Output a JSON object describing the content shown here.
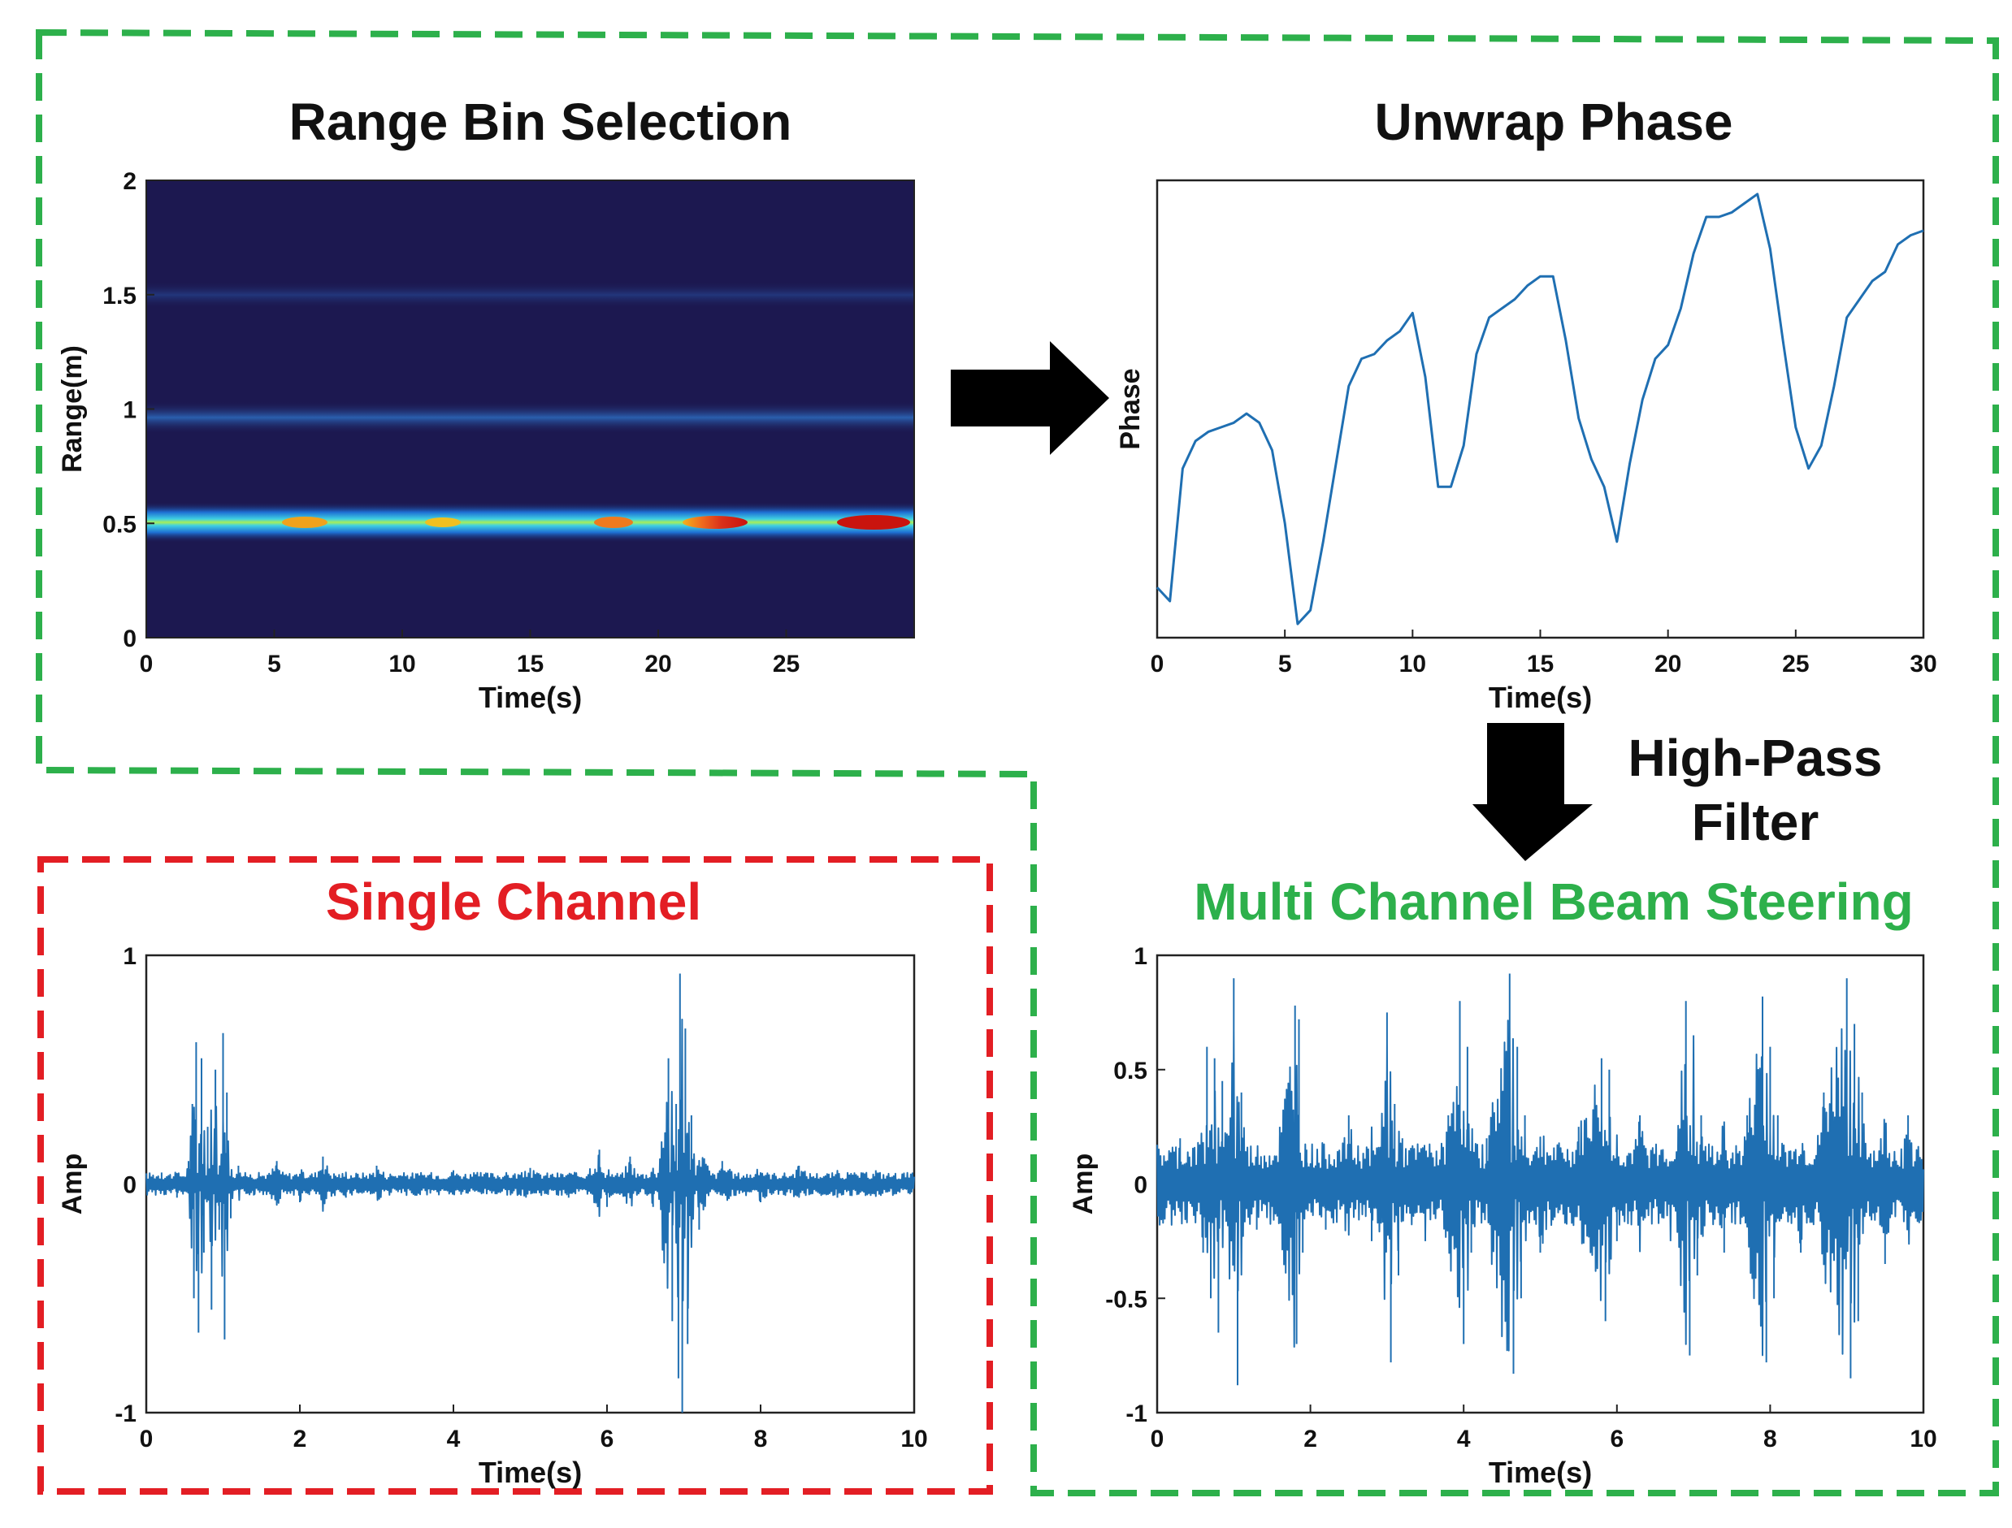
{
  "colors": {
    "group_green": "#2db04b",
    "group_red": "#e31e24",
    "signal_blue": "#1f6fb2",
    "arrow": "#000000",
    "heatmap_low": "#1c1850",
    "heatmap_high": "#d41c0e"
  },
  "labels": {
    "range_bin_title": "Range Bin Selection",
    "unwrap_title": "Unwrap Phase",
    "single_title": "Single Channel",
    "multi_title": "Multi Channel Beam Steering",
    "filter_line1": "High-Pass",
    "filter_line2": "Filter"
  },
  "chart_data": [
    {
      "id": "range_bin",
      "type": "heatmap",
      "title": "Range Bin Selection",
      "xlabel": "Time(s)",
      "ylabel": "Range(m)",
      "xlim": [
        0,
        30
      ],
      "ylim": [
        0,
        2
      ],
      "xticks": [
        0,
        5,
        10,
        15,
        20,
        25
      ],
      "yticks": [
        0,
        0.5,
        1,
        1.5,
        2
      ],
      "ytick_labels": [
        "0",
        "0.5",
        "1",
        "1.5",
        "2"
      ],
      "bands": [
        {
          "range_m": 0.5,
          "intensity": 1.0
        },
        {
          "range_m": 0.97,
          "intensity": 0.35
        },
        {
          "range_m": 1.45,
          "intensity": 0.15
        }
      ]
    },
    {
      "id": "unwrap",
      "type": "line",
      "title": "Unwrap Phase",
      "xlabel": "Time(s)",
      "ylabel": "Phase",
      "xlim": [
        0,
        30
      ],
      "xticks": [
        0,
        5,
        10,
        15,
        20,
        25,
        30
      ],
      "ylim": [
        0,
        1
      ],
      "x": [
        0,
        0.5,
        1,
        1.5,
        2,
        2.5,
        3,
        3.5,
        4,
        4.5,
        5,
        5.5,
        6,
        6.5,
        7,
        7.5,
        8,
        8.5,
        9,
        9.5,
        10,
        10.5,
        11,
        11.5,
        12,
        12.5,
        13,
        13.5,
        14,
        14.5,
        15,
        15.5,
        16,
        16.5,
        17,
        17.5,
        18,
        18.5,
        19,
        19.5,
        20,
        20.5,
        21,
        21.5,
        22,
        22.5,
        23,
        23.5,
        24,
        24.5,
        25,
        25.5,
        26,
        26.5,
        27,
        27.5,
        28,
        28.5,
        29,
        29.5,
        30
      ],
      "y": [
        0.11,
        0.08,
        0.37,
        0.43,
        0.45,
        0.46,
        0.47,
        0.49,
        0.47,
        0.41,
        0.25,
        0.03,
        0.06,
        0.21,
        0.38,
        0.55,
        0.61,
        0.62,
        0.65,
        0.67,
        0.71,
        0.57,
        0.33,
        0.33,
        0.42,
        0.62,
        0.7,
        0.72,
        0.74,
        0.77,
        0.79,
        0.79,
        0.65,
        0.48,
        0.39,
        0.33,
        0.21,
        0.38,
        0.52,
        0.61,
        0.64,
        0.72,
        0.84,
        0.92,
        0.92,
        0.93,
        0.95,
        0.97,
        0.85,
        0.65,
        0.46,
        0.37,
        0.42,
        0.55,
        0.7,
        0.74,
        0.78,
        0.8,
        0.86,
        0.88,
        0.89
      ]
    },
    {
      "id": "single",
      "type": "line",
      "title": "Single Channel",
      "xlabel": "Time(s)",
      "ylabel": "Amp",
      "xlim": [
        0,
        10
      ],
      "ylim": [
        -1,
        1
      ],
      "xticks": [
        0,
        2,
        4,
        6,
        8,
        10
      ],
      "yticks": [
        -1,
        0,
        1
      ],
      "ytick_labels": [
        "-1",
        "0",
        "1"
      ],
      "x": [
        0,
        0.2,
        0.4,
        0.55,
        0.6,
        0.62,
        0.65,
        0.68,
        0.72,
        0.75,
        0.8,
        0.85,
        0.9,
        0.95,
        1.0,
        1.02,
        1.05,
        1.1,
        1.2,
        1.4,
        1.7,
        2.0,
        2.3,
        2.6,
        3.0,
        3.5,
        4.0,
        4.5,
        5.0,
        5.5,
        5.9,
        6.0,
        6.3,
        6.6,
        6.8,
        6.85,
        6.9,
        6.93,
        6.95,
        6.98,
        7.02,
        7.05,
        7.1,
        7.2,
        7.5,
        8.0,
        8.5,
        9.0,
        9.5,
        10.0
      ],
      "y": [
        0.0,
        0.05,
        -0.06,
        0.1,
        0.35,
        -0.5,
        0.62,
        -0.65,
        0.55,
        -0.3,
        0.25,
        -0.55,
        0.5,
        -0.2,
        0.66,
        -0.68,
        0.4,
        -0.15,
        0.08,
        -0.05,
        0.1,
        -0.08,
        0.12,
        -0.06,
        0.08,
        -0.05,
        0.06,
        -0.04,
        0.07,
        -0.06,
        0.15,
        -0.1,
        0.12,
        -0.1,
        0.55,
        -0.6,
        0.35,
        -0.85,
        0.92,
        -1.0,
        0.68,
        -0.7,
        0.3,
        -0.2,
        0.1,
        -0.08,
        0.08,
        -0.06,
        0.06,
        0.0
      ]
    },
    {
      "id": "multi",
      "type": "line",
      "title": "Multi Channel Beam Steering",
      "xlabel": "Time(s)",
      "ylabel": "Amp",
      "xlim": [
        0,
        10
      ],
      "ylim": [
        -1,
        1
      ],
      "xticks": [
        0,
        2,
        4,
        6,
        8,
        10
      ],
      "yticks": [
        -1,
        -0.5,
        0,
        0.5,
        1
      ],
      "ytick_labels": [
        "-1",
        "-0.5",
        "0",
        "0.5",
        "1"
      ],
      "x": [
        0,
        0.3,
        0.6,
        0.65,
        0.7,
        0.75,
        0.8,
        0.85,
        0.9,
        1.0,
        1.05,
        1.1,
        1.3,
        1.6,
        1.8,
        1.82,
        1.85,
        1.9,
        1.95,
        2.2,
        2.5,
        2.8,
        3.0,
        3.05,
        3.1,
        3.15,
        3.2,
        3.5,
        3.8,
        3.95,
        4.0,
        4.05,
        4.1,
        4.3,
        4.6,
        4.65,
        4.7,
        4.75,
        4.8,
        5.0,
        5.5,
        5.8,
        5.85,
        5.9,
        6.0,
        6.3,
        6.7,
        6.9,
        6.95,
        7.0,
        7.05,
        7.1,
        7.4,
        7.7,
        7.9,
        7.95,
        8.0,
        8.05,
        8.1,
        8.4,
        8.7,
        9.0,
        9.05,
        9.1,
        9.15,
        9.2,
        9.5,
        9.8,
        10.0
      ],
      "y": [
        0.0,
        0.2,
        -0.3,
        0.6,
        -0.5,
        0.55,
        -0.65,
        0.45,
        0.2,
        0.9,
        -0.88,
        0.4,
        -0.2,
        0.25,
        0.78,
        -0.7,
        0.72,
        -0.3,
        0.15,
        -0.2,
        0.3,
        -0.25,
        0.75,
        -0.78,
        0.35,
        -0.4,
        0.2,
        -0.25,
        0.3,
        0.8,
        -0.7,
        0.6,
        -0.3,
        0.2,
        0.92,
        -0.83,
        0.6,
        -0.5,
        0.3,
        -0.3,
        0.25,
        0.55,
        -0.6,
        0.5,
        -0.25,
        0.3,
        -0.25,
        0.8,
        -0.75,
        0.65,
        -0.4,
        0.3,
        -0.3,
        0.3,
        0.82,
        -0.78,
        0.6,
        -0.5,
        0.3,
        -0.3,
        0.4,
        0.9,
        -0.85,
        0.7,
        -0.6,
        0.4,
        -0.35,
        0.3,
        0.0
      ]
    }
  ]
}
